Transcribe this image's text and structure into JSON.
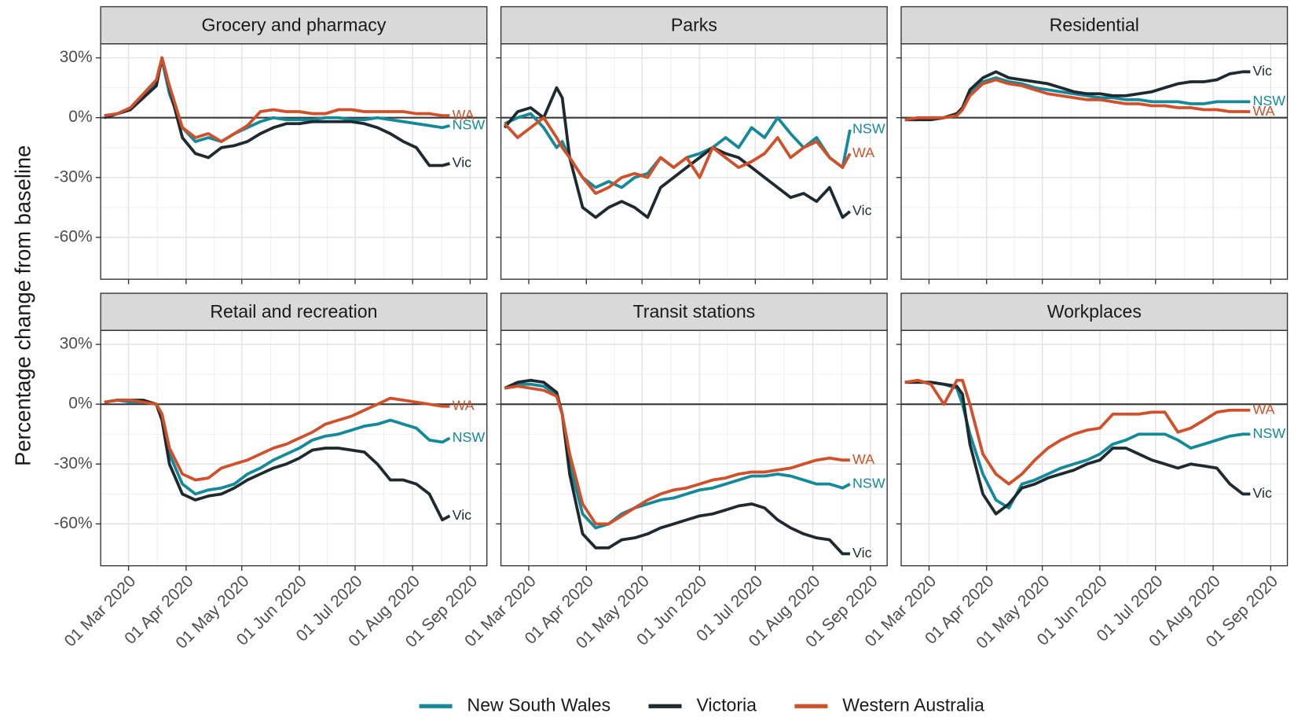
{
  "chart_data": [
    {
      "type": "line",
      "title": "Grocery and pharmacy",
      "ylabel": "Percentage change from baseline",
      "legend": "bottom",
      "grid": true,
      "x": [
        "2020-02-17",
        "2020-02-24",
        "2020-03-02",
        "2020-03-09",
        "2020-03-16",
        "2020-03-19",
        "2020-03-23",
        "2020-03-30",
        "2020-04-06",
        "2020-04-13",
        "2020-04-20",
        "2020-04-27",
        "2020-05-04",
        "2020-05-11",
        "2020-05-18",
        "2020-05-25",
        "2020-06-01",
        "2020-06-08",
        "2020-06-15",
        "2020-06-22",
        "2020-06-29",
        "2020-07-06",
        "2020-07-13",
        "2020-07-20",
        "2020-07-27",
        "2020-08-03",
        "2020-08-10",
        "2020-08-17",
        "2020-08-21"
      ],
      "xlim": [
        "2020-02-15",
        "2020-09-10"
      ],
      "xticks": [
        "2020-03-01",
        "2020-04-01",
        "2020-05-01",
        "2020-06-01",
        "2020-07-01",
        "2020-08-01",
        "2020-09-01"
      ],
      "ylim": [
        -81,
        37
      ],
      "yticks": [
        {
          "value": 30,
          "label": "30%"
        },
        {
          "value": 0,
          "label": "0%"
        },
        {
          "value": -30,
          "label": "-30%"
        },
        {
          "value": -60,
          "label": "-60%"
        }
      ],
      "series": [
        {
          "name": "New South Wales",
          "end_label": "NSW",
          "color": "#13899a",
          "values": [
            1,
            2,
            4,
            11,
            18,
            29,
            12,
            -5,
            -12,
            -10,
            -12,
            -8,
            -5,
            -2,
            0,
            -1,
            -1,
            -1,
            0,
            0,
            -1,
            -1,
            0,
            -1,
            -2,
            -3,
            -4,
            -5,
            -4
          ]
        },
        {
          "name": "Victoria",
          "end_label": "Vic",
          "color": "#1f2a30",
          "values": [
            0,
            2,
            4,
            10,
            16,
            30,
            15,
            -10,
            -18,
            -20,
            -15,
            -14,
            -12,
            -8,
            -5,
            -3,
            -3,
            -2,
            -2,
            -2,
            -2,
            -3,
            -5,
            -8,
            -12,
            -15,
            -24,
            -24,
            -23
          ]
        },
        {
          "name": "Western Australia",
          "end_label": "WA",
          "color": "#d1502a",
          "values": [
            1,
            2,
            5,
            12,
            19,
            30,
            16,
            -5,
            -10,
            -8,
            -12,
            -8,
            -4,
            3,
            4,
            3,
            3,
            2,
            2,
            4,
            4,
            3,
            3,
            3,
            3,
            2,
            2,
            1,
            1
          ]
        }
      ]
    },
    {
      "type": "line",
      "title": "Parks",
      "grid": true,
      "x": [
        "2020-02-17",
        "2020-02-24",
        "2020-03-02",
        "2020-03-09",
        "2020-03-16",
        "2020-03-19",
        "2020-03-23",
        "2020-03-30",
        "2020-04-06",
        "2020-04-13",
        "2020-04-20",
        "2020-04-27",
        "2020-05-04",
        "2020-05-11",
        "2020-05-18",
        "2020-05-25",
        "2020-06-01",
        "2020-06-08",
        "2020-06-15",
        "2020-06-22",
        "2020-06-29",
        "2020-07-06",
        "2020-07-13",
        "2020-07-20",
        "2020-07-27",
        "2020-08-03",
        "2020-08-10",
        "2020-08-17",
        "2020-08-21"
      ],
      "xlim": [
        "2020-02-15",
        "2020-09-10"
      ],
      "xticks": [
        "2020-03-01",
        "2020-04-01",
        "2020-05-01",
        "2020-06-01",
        "2020-07-01",
        "2020-08-01",
        "2020-09-01"
      ],
      "ylim": [
        -81,
        37
      ],
      "yticks": [
        30,
        0,
        -30,
        -60
      ],
      "series": [
        {
          "name": "New South Wales",
          "end_label": "NSW",
          "color": "#13899a",
          "values": [
            -3,
            0,
            2,
            -5,
            -15,
            -12,
            -20,
            -30,
            -35,
            -32,
            -35,
            -30,
            -28,
            -20,
            -25,
            -20,
            -18,
            -15,
            -10,
            -15,
            -5,
            -10,
            0,
            -8,
            -15,
            -10,
            -20,
            -25,
            -6
          ]
        },
        {
          "name": "Victoria",
          "end_label": "Vic",
          "color": "#1f2a30",
          "values": [
            -5,
            3,
            5,
            0,
            15,
            10,
            -20,
            -45,
            -50,
            -45,
            -42,
            -45,
            -50,
            -35,
            -30,
            -25,
            -20,
            -15,
            -18,
            -20,
            -25,
            -30,
            -35,
            -40,
            -38,
            -42,
            -35,
            -50,
            -47
          ]
        },
        {
          "name": "Western Australia",
          "end_label": "WA",
          "color": "#d1502a",
          "values": [
            -3,
            -10,
            -5,
            0,
            -10,
            -15,
            -20,
            -30,
            -38,
            -35,
            -30,
            -28,
            -30,
            -20,
            -25,
            -20,
            -30,
            -15,
            -20,
            -25,
            -22,
            -18,
            -10,
            -20,
            -15,
            -12,
            -20,
            -25,
            -18
          ]
        }
      ]
    },
    {
      "type": "line",
      "title": "Residential",
      "grid": true,
      "x": [
        "2020-02-17",
        "2020-02-24",
        "2020-03-02",
        "2020-03-09",
        "2020-03-16",
        "2020-03-19",
        "2020-03-23",
        "2020-03-30",
        "2020-04-06",
        "2020-04-13",
        "2020-04-20",
        "2020-04-27",
        "2020-05-04",
        "2020-05-11",
        "2020-05-18",
        "2020-05-25",
        "2020-06-01",
        "2020-06-08",
        "2020-06-15",
        "2020-06-22",
        "2020-06-29",
        "2020-07-06",
        "2020-07-13",
        "2020-07-20",
        "2020-07-27",
        "2020-08-03",
        "2020-08-10",
        "2020-08-17",
        "2020-08-21"
      ],
      "xlim": [
        "2020-02-15",
        "2020-09-10"
      ],
      "xticks": [
        "2020-03-01",
        "2020-04-01",
        "2020-05-01",
        "2020-06-01",
        "2020-07-01",
        "2020-08-01",
        "2020-09-01"
      ],
      "ylim": [
        -81,
        37
      ],
      "yticks": [
        30,
        0,
        -30,
        -60
      ],
      "series": [
        {
          "name": "New South Wales",
          "end_label": "NSW",
          "color": "#13899a",
          "values": [
            -1,
            -1,
            0,
            0,
            2,
            5,
            12,
            18,
            20,
            18,
            17,
            15,
            14,
            13,
            12,
            11,
            10,
            10,
            9,
            9,
            8,
            8,
            8,
            7,
            7,
            8,
            8,
            8,
            8
          ]
        },
        {
          "name": "Victoria",
          "end_label": "Vic",
          "color": "#1f2a30",
          "values": [
            -1,
            -1,
            -1,
            0,
            2,
            5,
            14,
            20,
            23,
            20,
            19,
            18,
            17,
            15,
            13,
            12,
            12,
            11,
            11,
            12,
            13,
            15,
            17,
            18,
            18,
            19,
            22,
            23,
            23
          ]
        },
        {
          "name": "Western Australia",
          "end_label": "WA",
          "color": "#d1502a",
          "values": [
            -1,
            0,
            0,
            0,
            1,
            4,
            11,
            17,
            19,
            17,
            16,
            14,
            12,
            11,
            10,
            9,
            9,
            8,
            7,
            7,
            6,
            6,
            5,
            5,
            4,
            4,
            3,
            3,
            3
          ]
        }
      ]
    },
    {
      "type": "line",
      "title": "Retail and recreation",
      "grid": true,
      "x": [
        "2020-02-17",
        "2020-02-24",
        "2020-03-02",
        "2020-03-09",
        "2020-03-16",
        "2020-03-19",
        "2020-03-23",
        "2020-03-30",
        "2020-04-06",
        "2020-04-13",
        "2020-04-20",
        "2020-04-27",
        "2020-05-04",
        "2020-05-11",
        "2020-05-18",
        "2020-05-25",
        "2020-06-01",
        "2020-06-08",
        "2020-06-15",
        "2020-06-22",
        "2020-06-29",
        "2020-07-06",
        "2020-07-13",
        "2020-07-20",
        "2020-07-27",
        "2020-08-03",
        "2020-08-10",
        "2020-08-17",
        "2020-08-21"
      ],
      "xlim": [
        "2020-02-15",
        "2020-09-10"
      ],
      "xticks": [
        {
          "value": "2020-03-01",
          "label": "01 Mar 2020"
        },
        {
          "value": "2020-04-01",
          "label": "01 Apr 2020"
        },
        {
          "value": "2020-05-01",
          "label": "01 May 2020"
        },
        {
          "value": "2020-06-01",
          "label": "01 Jun 2020"
        },
        {
          "value": "2020-07-01",
          "label": "01 Jul 2020"
        },
        {
          "value": "2020-08-01",
          "label": "01 Aug 2020"
        },
        {
          "value": "2020-09-01",
          "label": "01 Sep 2020"
        }
      ],
      "ylim": [
        -81,
        37
      ],
      "yticks": [
        {
          "value": 30,
          "label": "30%"
        },
        {
          "value": 0,
          "label": "0%"
        },
        {
          "value": -30,
          "label": "-30%"
        },
        {
          "value": -60,
          "label": "-60%"
        }
      ],
      "series": [
        {
          "name": "New South Wales",
          "end_label": "NSW",
          "color": "#13899a",
          "values": [
            1,
            2,
            1,
            1,
            0,
            -5,
            -25,
            -40,
            -45,
            -43,
            -42,
            -40,
            -35,
            -32,
            -28,
            -25,
            -22,
            -18,
            -16,
            -15,
            -13,
            -11,
            -10,
            -8,
            -10,
            -12,
            -18,
            -19,
            -17
          ]
        },
        {
          "name": "Victoria",
          "end_label": "Vic",
          "color": "#1f2a30",
          "values": [
            1,
            2,
            2,
            2,
            0,
            -8,
            -30,
            -45,
            -48,
            -46,
            -45,
            -42,
            -38,
            -35,
            -32,
            -30,
            -27,
            -23,
            -22,
            -22,
            -23,
            -24,
            -30,
            -38,
            -38,
            -40,
            -45,
            -58,
            -56
          ]
        },
        {
          "name": "Western Australia",
          "end_label": "WA",
          "color": "#d1502a",
          "values": [
            1,
            2,
            2,
            1,
            0,
            -5,
            -22,
            -35,
            -38,
            -37,
            -32,
            -30,
            -28,
            -25,
            -22,
            -20,
            -17,
            -14,
            -10,
            -8,
            -6,
            -3,
            0,
            3,
            2,
            1,
            0,
            -1,
            -1
          ]
        }
      ]
    },
    {
      "type": "line",
      "title": "Transit stations",
      "grid": true,
      "x": [
        "2020-02-17",
        "2020-02-24",
        "2020-03-02",
        "2020-03-09",
        "2020-03-16",
        "2020-03-19",
        "2020-03-23",
        "2020-03-30",
        "2020-04-06",
        "2020-04-13",
        "2020-04-20",
        "2020-04-27",
        "2020-05-04",
        "2020-05-11",
        "2020-05-18",
        "2020-05-25",
        "2020-06-01",
        "2020-06-08",
        "2020-06-15",
        "2020-06-22",
        "2020-06-29",
        "2020-07-06",
        "2020-07-13",
        "2020-07-20",
        "2020-07-27",
        "2020-08-03",
        "2020-08-10",
        "2020-08-17",
        "2020-08-21"
      ],
      "xlim": [
        "2020-02-15",
        "2020-09-10"
      ],
      "xticks": [
        {
          "value": "2020-03-01",
          "label": "01 Mar 2020"
        },
        {
          "value": "2020-04-01",
          "label": "01 Apr 2020"
        },
        {
          "value": "2020-05-01",
          "label": "01 May 2020"
        },
        {
          "value": "2020-06-01",
          "label": "01 Jun 2020"
        },
        {
          "value": "2020-07-01",
          "label": "01 Jul 2020"
        },
        {
          "value": "2020-08-01",
          "label": "01 Aug 2020"
        },
        {
          "value": "2020-09-01",
          "label": "01 Sep 2020"
        }
      ],
      "ylim": [
        -81,
        37
      ],
      "yticks": [
        30,
        0,
        -30,
        -60
      ],
      "series": [
        {
          "name": "New South Wales",
          "end_label": "NSW",
          "color": "#13899a",
          "values": [
            8,
            10,
            10,
            9,
            5,
            -5,
            -30,
            -55,
            -62,
            -60,
            -55,
            -52,
            -50,
            -48,
            -47,
            -45,
            -43,
            -42,
            -40,
            -38,
            -36,
            -36,
            -35,
            -36,
            -38,
            -40,
            -40,
            -42,
            -40
          ]
        },
        {
          "name": "Victoria",
          "end_label": "Vic",
          "color": "#1f2a30",
          "values": [
            8,
            11,
            12,
            11,
            6,
            -5,
            -35,
            -65,
            -72,
            -72,
            -68,
            -67,
            -65,
            -62,
            -60,
            -58,
            -56,
            -55,
            -53,
            -51,
            -50,
            -52,
            -58,
            -62,
            -65,
            -67,
            -68,
            -75,
            -75
          ]
        },
        {
          "name": "Western Australia",
          "end_label": "WA",
          "color": "#d1502a",
          "values": [
            8,
            9,
            8,
            7,
            4,
            -5,
            -25,
            -50,
            -60,
            -60,
            -56,
            -52,
            -48,
            -45,
            -43,
            -42,
            -40,
            -38,
            -37,
            -35,
            -34,
            -34,
            -33,
            -32,
            -30,
            -28,
            -27,
            -28,
            -28
          ]
        }
      ]
    },
    {
      "type": "line",
      "title": "Workplaces",
      "grid": true,
      "x": [
        "2020-02-17",
        "2020-02-24",
        "2020-03-02",
        "2020-03-09",
        "2020-03-16",
        "2020-03-19",
        "2020-03-23",
        "2020-03-30",
        "2020-04-06",
        "2020-04-13",
        "2020-04-20",
        "2020-04-27",
        "2020-05-04",
        "2020-05-11",
        "2020-05-18",
        "2020-05-25",
        "2020-06-01",
        "2020-06-08",
        "2020-06-15",
        "2020-06-22",
        "2020-06-29",
        "2020-07-06",
        "2020-07-13",
        "2020-07-20",
        "2020-07-27",
        "2020-08-03",
        "2020-08-10",
        "2020-08-17",
        "2020-08-21"
      ],
      "xlim": [
        "2020-02-15",
        "2020-09-10"
      ],
      "xticks": [
        {
          "value": "2020-03-01",
          "label": "01 Mar 2020"
        },
        {
          "value": "2020-04-01",
          "label": "01 Apr 2020"
        },
        {
          "value": "2020-05-01",
          "label": "01 May 2020"
        },
        {
          "value": "2020-06-01",
          "label": "01 Jun 2020"
        },
        {
          "value": "2020-07-01",
          "label": "01 Jul 2020"
        },
        {
          "value": "2020-08-01",
          "label": "01 Aug 2020"
        },
        {
          "value": "2020-09-01",
          "label": "01 Sep 2020"
        }
      ],
      "ylim": [
        -81,
        37
      ],
      "yticks": [
        30,
        0,
        -30,
        -60
      ],
      "series": [
        {
          "name": "New South Wales",
          "end_label": "NSW",
          "color": "#13899a",
          "values": [
            11,
            11,
            11,
            10,
            8,
            0,
            -15,
            -35,
            -48,
            -52,
            -40,
            -38,
            -35,
            -32,
            -30,
            -28,
            -25,
            -20,
            -18,
            -15,
            -15,
            -15,
            -18,
            -22,
            -20,
            -18,
            -16,
            -15,
            -15
          ]
        },
        {
          "name": "Victoria",
          "end_label": "Vic",
          "color": "#1f2a30",
          "values": [
            11,
            11,
            11,
            10,
            9,
            5,
            -20,
            -45,
            -55,
            -50,
            -42,
            -40,
            -37,
            -35,
            -33,
            -30,
            -28,
            -22,
            -22,
            -25,
            -28,
            -30,
            -32,
            -30,
            -31,
            -32,
            -40,
            -45,
            -45
          ]
        },
        {
          "name": "Western Australia",
          "end_label": "WA",
          "color": "#d1502a",
          "values": [
            11,
            12,
            10,
            0,
            12,
            12,
            0,
            -25,
            -35,
            -40,
            -35,
            -28,
            -22,
            -18,
            -15,
            -13,
            -12,
            -5,
            -5,
            -5,
            -4,
            -4,
            -14,
            -12,
            -8,
            -4,
            -3,
            -3,
            -3
          ]
        }
      ]
    }
  ]
}
